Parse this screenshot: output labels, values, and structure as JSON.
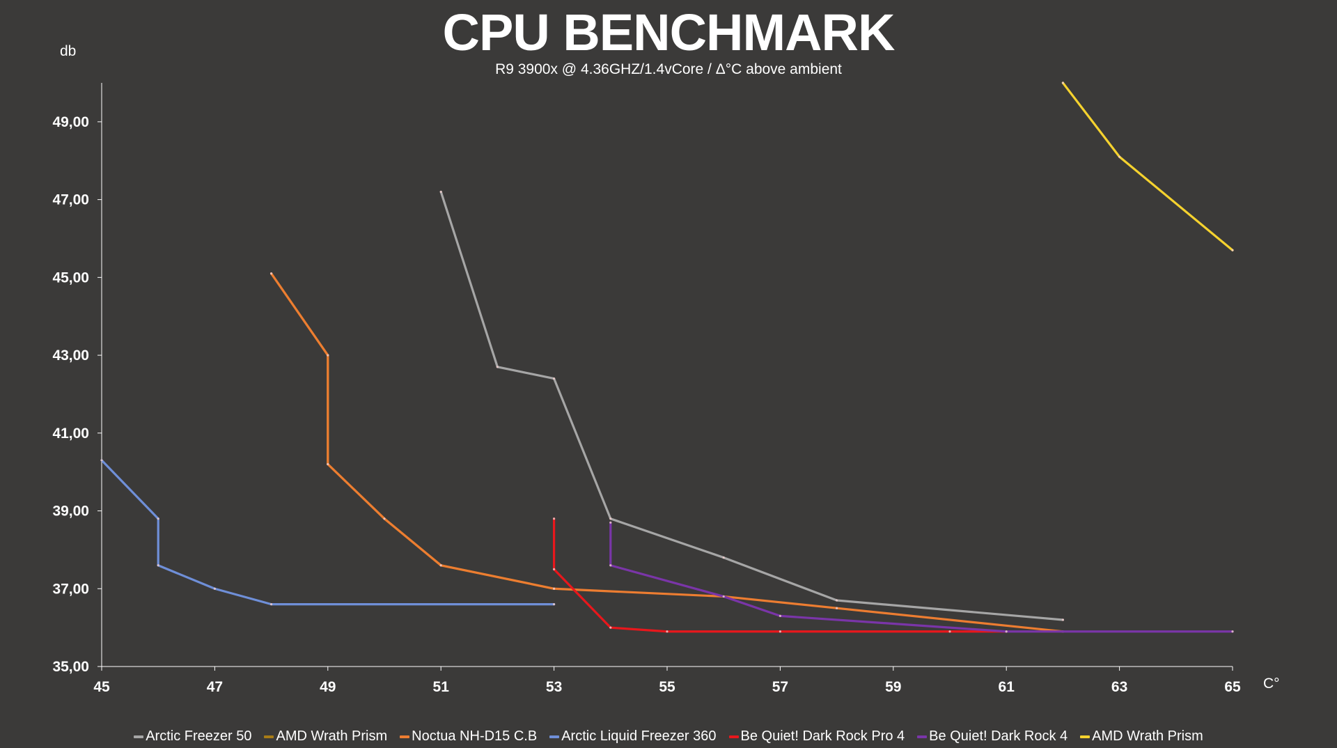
{
  "chart_data": {
    "type": "line",
    "title": "CPU BENCHMARK",
    "subtitle": "R9 3900x @ 4.36GHZ/1.4vCore  /  Δ°C above ambient",
    "xlabel": "C°",
    "ylabel": "db",
    "xlim": [
      45,
      65
    ],
    "ylim": [
      35,
      50
    ],
    "x_ticks": [
      45,
      47,
      49,
      51,
      53,
      55,
      57,
      59,
      61,
      63,
      65
    ],
    "y_ticks": [
      35,
      37,
      39,
      41,
      43,
      45,
      47,
      49
    ],
    "y_tick_labels": [
      "35,00",
      "37,00",
      "39,00",
      "41,00",
      "43,00",
      "45,00",
      "47,00",
      "49,00"
    ],
    "x_tick_labels": [
      "45",
      "47",
      "49",
      "51",
      "53",
      "55",
      "57",
      "59",
      "61",
      "63",
      "65"
    ],
    "grid": false,
    "legend_position": "bottom",
    "series": [
      {
        "name": "Arctic Freezer 50",
        "color": "#a6a6a6",
        "points": [
          [
            51,
            47.2
          ],
          [
            52,
            42.7
          ],
          [
            53,
            42.4
          ],
          [
            54,
            38.8
          ],
          [
            56,
            37.8
          ],
          [
            58,
            36.7
          ],
          [
            62,
            36.2
          ]
        ]
      },
      {
        "name": "AMD Wrath Prism",
        "color": "#a87c16",
        "points": [
          [
            48,
            45.1
          ],
          [
            49,
            43.0
          ],
          [
            49,
            40.2
          ],
          [
            50,
            38.8
          ],
          [
            51,
            37.6
          ],
          [
            53,
            37.0
          ]
        ]
      },
      {
        "name": "Noctua NH-D15 C.B",
        "color": "#ed7d31",
        "points": [
          [
            48,
            45.1
          ],
          [
            49,
            43.0
          ],
          [
            49,
            40.2
          ],
          [
            50,
            38.8
          ],
          [
            51,
            37.6
          ],
          [
            53,
            37.0
          ],
          [
            56,
            36.8
          ],
          [
            58,
            36.5
          ],
          [
            62,
            35.9
          ]
        ]
      },
      {
        "name": "Arctic Liquid Freezer 360",
        "color": "#6f8fd8",
        "points": [
          [
            45,
            40.3
          ],
          [
            46,
            38.8
          ],
          [
            46,
            37.6
          ],
          [
            47,
            37.0
          ],
          [
            48,
            36.6
          ],
          [
            53,
            36.6
          ]
        ]
      },
      {
        "name": "Be Quiet! Dark Rock Pro 4",
        "color": "#e8171c",
        "points": [
          [
            53,
            38.8
          ],
          [
            53,
            37.5
          ],
          [
            54,
            36.0
          ],
          [
            55,
            35.9
          ],
          [
            57,
            35.9
          ],
          [
            60,
            35.9
          ],
          [
            61,
            35.9
          ]
        ]
      },
      {
        "name": "Be Quiet! Dark Rock 4",
        "color": "#7a35a8",
        "points": [
          [
            54,
            38.7
          ],
          [
            54,
            37.6
          ],
          [
            56,
            36.8
          ],
          [
            57,
            36.3
          ],
          [
            61,
            35.9
          ],
          [
            65,
            35.9
          ]
        ]
      },
      {
        "name": "AMD Wrath Prism",
        "color": "#f5d22e",
        "points": [
          [
            62,
            50.0
          ],
          [
            63,
            48.1
          ],
          [
            65,
            45.7
          ]
        ]
      }
    ]
  }
}
